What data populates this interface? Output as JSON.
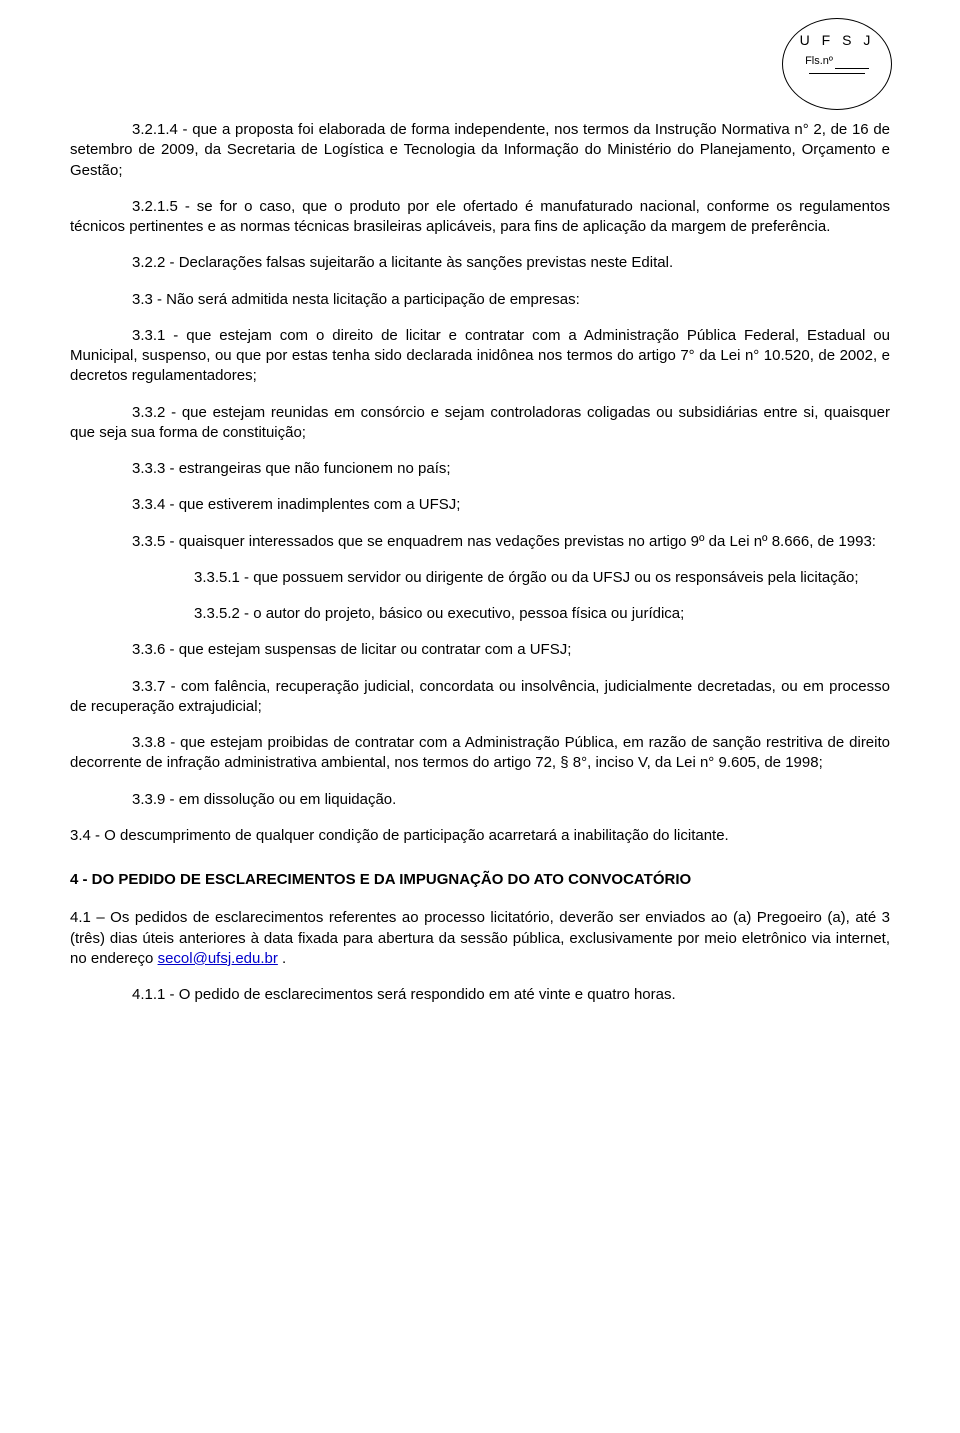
{
  "stamp": {
    "org": "U F S J",
    "fls": "Fls.nº"
  },
  "p": {
    "p3214": "3.2.1.4 - que a proposta foi elaborada de forma independente, nos termos da Instrução Normativa n° 2, de 16 de setembro de 2009, da Secretaria de Logística e Tecnologia da Informação do Ministério do Planejamento, Orçamento e Gestão;",
    "p3215": "3.2.1.5 - se for o caso, que o produto por ele ofertado é manufaturado nacional, conforme os regulamentos técnicos pertinentes e as normas técnicas brasileiras aplicáveis, para fins de aplicação da margem de preferência.",
    "p322": "3.2.2 - Declarações falsas sujeitarão a licitante às sanções previstas neste Edital.",
    "p33": "3.3 - Não será admitida nesta licitação a participação de empresas:",
    "p331": "3.3.1 - que estejam com o direito de licitar e contratar com a Administração Pública Federal, Estadual ou Municipal, suspenso, ou que por estas tenha sido declarada inidônea nos termos do artigo 7° da Lei n° 10.520, de 2002, e decretos regulamentadores;",
    "p332": "3.3.2 - que estejam reunidas em consórcio e sejam controladoras coligadas ou subsidiárias entre si, quaisquer que seja sua forma de constituição;",
    "p333": "3.3.3 - estrangeiras que não funcionem no país;",
    "p334": "3.3.4 - que estiverem inadimplentes com a UFSJ;",
    "p335": "3.3.5 - quaisquer interessados que se enquadrem nas vedações previstas no artigo 9º da Lei nº 8.666, de 1993:",
    "p3351": "3.3.5.1 - que possuem servidor ou dirigente de órgão ou da UFSJ ou os responsáveis pela licitação;",
    "p3352": "3.3.5.2 - o autor do projeto, básico ou executivo, pessoa física ou jurídica;",
    "p336": "3.3.6 - que estejam suspensas de licitar ou contratar com a UFSJ;",
    "p337": "3.3.7 - com falência, recuperação judicial, concordata ou insolvência, judicialmente decretadas, ou em processo de recuperação extrajudicial;",
    "p338": "3.3.8 - que estejam proibidas de contratar com a Administração Pública, em razão de sanção restritiva de direito decorrente de infração administrativa ambiental, nos termos do artigo 72, § 8°, inciso V, da Lei n° 9.605, de 1998;",
    "p339": "3.3.9 - em dissolução ou em liquidação.",
    "p34": "3.4 - O descumprimento de qualquer condição de participação acarretará a inabilitação do licitante.",
    "sec4": "4 - DO PEDIDO DE ESCLARECIMENTOS E DA IMPUGNAÇÃO DO ATO CONVOCATÓRIO",
    "p41a": "4.1 – Os pedidos de esclarecimentos referentes ao processo licitatório, deverão ser enviados ao (a) Pregoeiro (a), até 3 (três) dias úteis anteriores à data fixada para abertura da sessão pública, exclusivamente por meio eletrônico via internet, no endereço ",
    "p41link": "secol@ufsj.edu.br",
    "p41b": " .",
    "p411": "4.1.1 - O pedido de esclarecimentos será respondido em até vinte e quatro horas."
  }
}
